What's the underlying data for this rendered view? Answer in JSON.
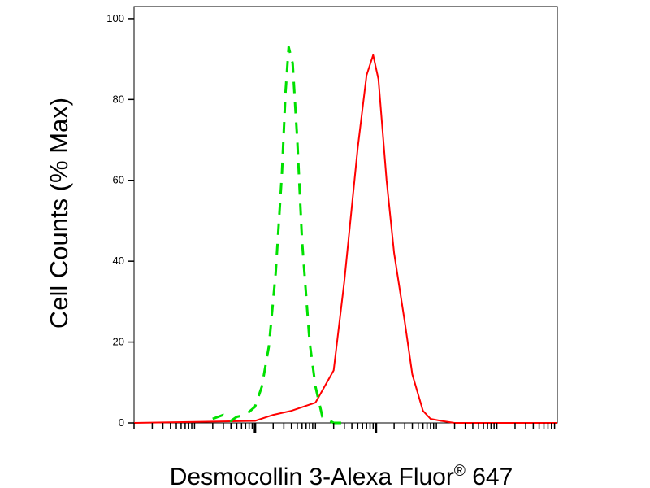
{
  "chart_data": {
    "type": "line",
    "title": "",
    "ylabel": "Cell Counts (% Max)",
    "xlabel": {
      "text": "Desmocollin 3-Alexa Fluor",
      "registered_mark": "®",
      "suffix": " 647"
    },
    "x_scale": "log",
    "xlim": [
      1,
      10000000
    ],
    "ylim": [
      0,
      103
    ],
    "y_ticks": [
      0,
      20,
      40,
      60,
      80,
      100
    ],
    "x_major_ticks": [
      100,
      10000
    ],
    "grid": false,
    "legend": "none",
    "series": [
      {
        "color": "#ff0000",
        "style": "solid",
        "x": [
          1,
          100,
          200,
          400,
          1000,
          2000,
          3000,
          5000,
          7000,
          9000,
          11000,
          15000,
          20000,
          30000,
          40000,
          60000,
          80000,
          120000,
          200000,
          500000,
          1000000,
          5000000,
          10000000
        ],
        "y": [
          0,
          0.5,
          2,
          3,
          5,
          13,
          35,
          68,
          86,
          91,
          85,
          60,
          42,
          25,
          12,
          3,
          1,
          0.5,
          0,
          0,
          0,
          0,
          0
        ]
      },
      {
        "color": "#00e000",
        "style": "dashed",
        "x": [
          20,
          30,
          40,
          50,
          70,
          100,
          130,
          170,
          220,
          280,
          320,
          360,
          420,
          500,
          600,
          800,
          1000,
          1300,
          2000,
          3000
        ],
        "y": [
          1,
          2,
          0.5,
          1.5,
          2,
          4,
          9,
          19,
          37,
          62,
          82,
          93,
          89,
          70,
          45,
          20,
          9,
          1.5,
          0,
          0
        ]
      }
    ]
  }
}
